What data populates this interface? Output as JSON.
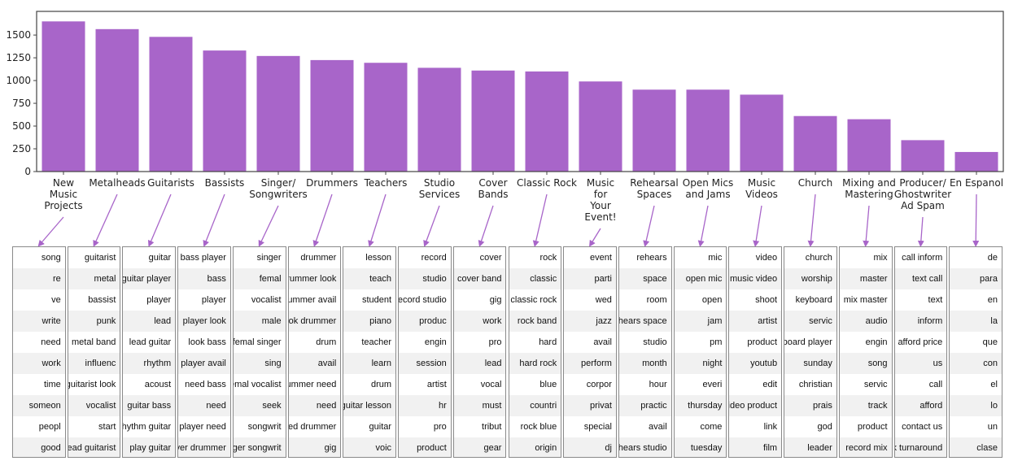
{
  "chart_data": {
    "type": "bar",
    "color": "#a865c9",
    "ylim": [
      0,
      1760
    ],
    "yticks": [
      0,
      250,
      500,
      750,
      1000,
      1250,
      1500
    ],
    "categories": [
      [
        "New",
        "Music",
        "Projects"
      ],
      [
        "Metalheads"
      ],
      [
        "Guitarists"
      ],
      [
        "Bassists"
      ],
      [
        "Singer/",
        "Songwriters"
      ],
      [
        "Drummers"
      ],
      [
        "Teachers"
      ],
      [
        "Studio",
        "Services"
      ],
      [
        "Cover",
        "Bands"
      ],
      [
        "Classic Rock"
      ],
      [
        "Music",
        "for",
        "Your",
        "Event!"
      ],
      [
        "Rehearsal",
        "Spaces"
      ],
      [
        "Open Mics",
        "and Jams"
      ],
      [
        "Music",
        "Videos"
      ],
      [
        "Church"
      ],
      [
        "Mixing and",
        "Mastering"
      ],
      [
        "Producer/",
        "Ghostwriter",
        "Ad Spam"
      ],
      [
        "En Espanol"
      ]
    ],
    "values": [
      1650,
      1565,
      1480,
      1330,
      1270,
      1225,
      1195,
      1140,
      1110,
      1100,
      990,
      900,
      900,
      845,
      610,
      575,
      345,
      215
    ]
  },
  "keyword_tables": [
    [
      "song",
      "re",
      "ve",
      "write",
      "need",
      "work",
      "time",
      "someon",
      "peopl",
      "good"
    ],
    [
      "guitarist",
      "metal",
      "bassist",
      "punk",
      "metal band",
      "influenc",
      "guitarist look",
      "vocalist",
      "start",
      "lead guitarist"
    ],
    [
      "guitar",
      "guitar player",
      "player",
      "lead",
      "lead guitar",
      "rhythm",
      "acoust",
      "guitar bass",
      "rhythm guitar",
      "play guitar"
    ],
    [
      "bass player",
      "bass",
      "player",
      "player look",
      "look bass",
      "player avail",
      "need bass",
      "need",
      "player need",
      "player drummer"
    ],
    [
      "singer",
      "femal",
      "vocalist",
      "male",
      "femal singer",
      "sing",
      "femal vocalist",
      "seek",
      "songwrit",
      "singer songwrit"
    ],
    [
      "drummer",
      "drummer look",
      "drummer avail",
      "look drummer",
      "drum",
      "avail",
      "drummer need",
      "need",
      "need drummer",
      "gig"
    ],
    [
      "lesson",
      "teach",
      "student",
      "piano",
      "teacher",
      "learn",
      "drum",
      "guitar lesson",
      "guitar",
      "voic"
    ],
    [
      "record",
      "studio",
      "record studio",
      "produc",
      "engin",
      "session",
      "artist",
      "hr",
      "pro",
      "product"
    ],
    [
      "cover",
      "cover band",
      "gig",
      "work",
      "pro",
      "lead",
      "vocal",
      "must",
      "tribut",
      "gear"
    ],
    [
      "rock",
      "classic",
      "classic rock",
      "rock band",
      "hard",
      "hard rock",
      "blue",
      "countri",
      "rock blue",
      "origin"
    ],
    [
      "event",
      "parti",
      "wed",
      "jazz",
      "avail",
      "perform",
      "corpor",
      "privat",
      "special",
      "dj"
    ],
    [
      "rehears",
      "space",
      "room",
      "rehears space",
      "studio",
      "month",
      "hour",
      "practic",
      "avail",
      "rehears studio"
    ],
    [
      "mic",
      "open mic",
      "open",
      "jam",
      "pm",
      "night",
      "everi",
      "thursday",
      "come",
      "tuesday"
    ],
    [
      "video",
      "music video",
      "shoot",
      "artist",
      "product",
      "youtub",
      "edit",
      "video product",
      "link",
      "film"
    ],
    [
      "church",
      "worship",
      "keyboard",
      "servic",
      "keyboard player",
      "sunday",
      "christian",
      "prais",
      "god",
      "leader"
    ],
    [
      "mix",
      "master",
      "mix master",
      "audio",
      "engin",
      "song",
      "servic",
      "track",
      "product",
      "record mix"
    ],
    [
      "call inform",
      "text call",
      "text",
      "inform",
      "afford price",
      "us",
      "call",
      "afford",
      "contact us",
      "quick turnaround"
    ],
    [
      "de",
      "para",
      "en",
      "la",
      "que",
      "con",
      "el",
      "lo",
      "un",
      "clase"
    ]
  ]
}
